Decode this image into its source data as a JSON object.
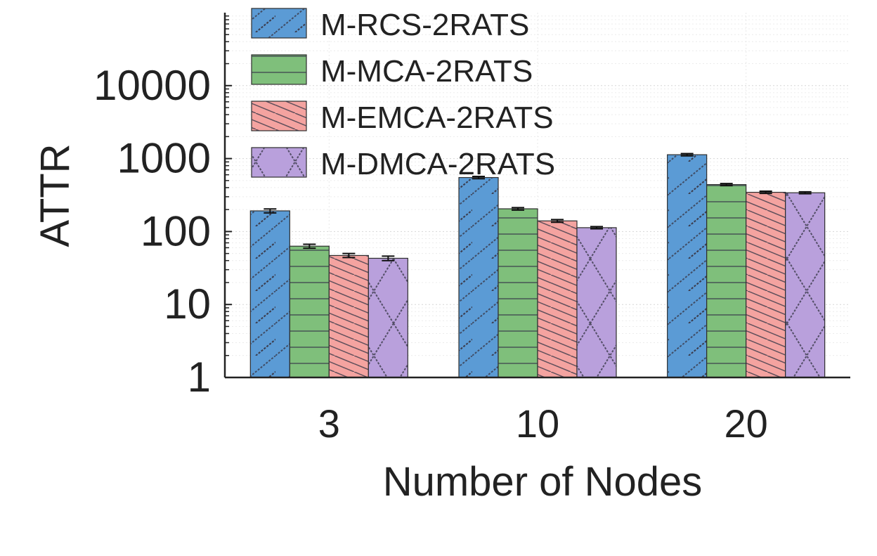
{
  "chart_data": {
    "type": "bar",
    "title": "",
    "xlabel": "Number of Nodes",
    "ylabel": "ATTR",
    "categories": [
      "3",
      "10",
      "20"
    ],
    "y_scale": "log",
    "ylim": [
      1,
      100000
    ],
    "yticks": [
      1,
      10,
      100,
      1000,
      10000
    ],
    "ytick_labels": [
      "1",
      "10",
      "100",
      "1000",
      "10000"
    ],
    "grid": true,
    "legend_position": "top-left",
    "series": [
      {
        "name": "M-RCS-2RATS",
        "values": [
          192,
          550,
          1130
        ],
        "errors": [
          12,
          20,
          40
        ],
        "color": "#5b9bd5",
        "hatch": "diagonal-forward"
      },
      {
        "name": "M-MCA-2RATS",
        "values": [
          63,
          205,
          440
        ],
        "errors": [
          4,
          8,
          15
        ],
        "color": "#7fbf7b",
        "hatch": "horizontal"
      },
      {
        "name": "M-EMCA-2RATS",
        "values": [
          47,
          140,
          345
        ],
        "errors": [
          3,
          6,
          12
        ],
        "color": "#f4a3a0",
        "hatch": "diagonal-back"
      },
      {
        "name": "M-DMCA-2RATS",
        "values": [
          43,
          113,
          340
        ],
        "errors": [
          3,
          4,
          10
        ],
        "color": "#b9a0dc",
        "hatch": "cross"
      }
    ]
  }
}
